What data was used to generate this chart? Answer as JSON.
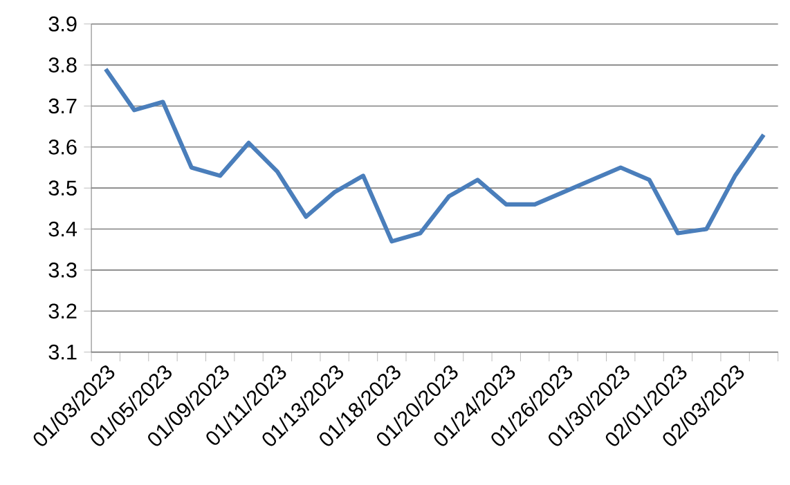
{
  "chart_data": {
    "type": "line",
    "categories": [
      "01/03/2023",
      null,
      "01/05/2023",
      null,
      "01/09/2023",
      null,
      "01/11/2023",
      null,
      "01/13/2023",
      null,
      "01/18/2023",
      null,
      "01/20/2023",
      null,
      "01/24/2023",
      null,
      "01/26/2023",
      null,
      "01/30/2023",
      null,
      "02/01/2023",
      null,
      "02/03/2023",
      null
    ],
    "values": [
      3.79,
      3.69,
      3.71,
      3.55,
      3.53,
      3.61,
      3.54,
      3.43,
      3.49,
      3.53,
      3.37,
      3.39,
      3.48,
      3.52,
      3.46,
      3.46,
      3.49,
      3.52,
      3.55,
      3.52,
      3.39,
      3.4,
      3.53,
      3.63
    ],
    "color": "#4a7ebb",
    "ylim": [
      3.1,
      3.9
    ],
    "yticks": [
      3.1,
      3.2,
      3.3,
      3.4,
      3.5,
      3.6,
      3.7,
      3.8,
      3.9
    ],
    "grid": "y",
    "marker": "none",
    "line_style": "solid"
  }
}
